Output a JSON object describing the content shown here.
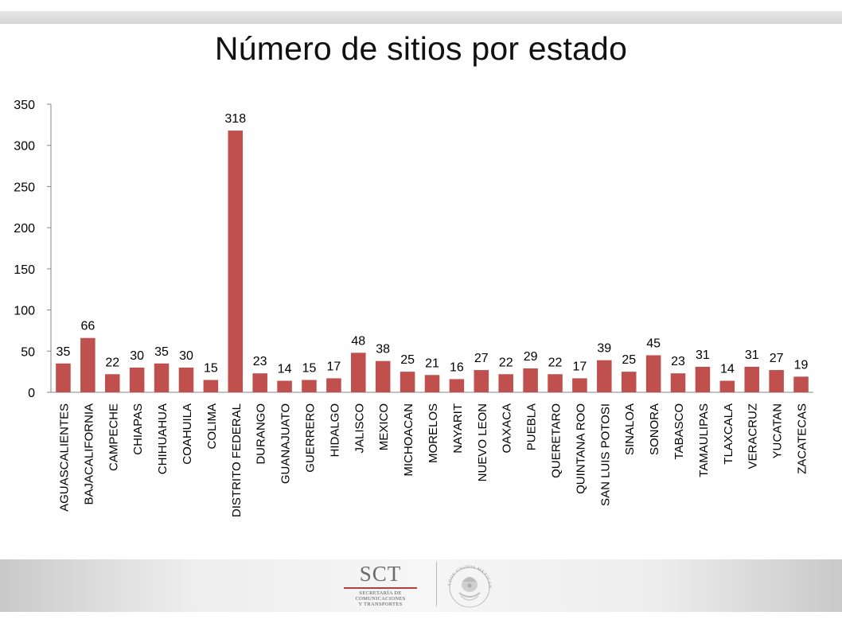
{
  "slide": {
    "title": "Número de sitios por estado"
  },
  "logo": {
    "name": "SCT",
    "subtitle_lines": [
      "SECRETARÍA DE",
      "COMUNICACIONES",
      "Y TRANSPORTES"
    ]
  },
  "seal": {
    "text": "ESTADOS UNIDOS MEXICANOS"
  },
  "colors": {
    "bar": "#c0504d",
    "axis": "#868686",
    "text": "#000000"
  },
  "chart_data": {
    "type": "bar",
    "title": "",
    "xlabel": "",
    "ylabel": "",
    "ylim": [
      0,
      350
    ],
    "yticks": [
      0,
      50,
      100,
      150,
      200,
      250,
      300,
      350
    ],
    "grid": false,
    "data_labels": true,
    "categories": [
      "AGUASCALIENTES",
      "BAJACALIFORNIA",
      "CAMPECHE",
      "CHIAPAS",
      "CHIHUAHUA",
      "COAHUILA",
      "COLIMA",
      "DISTRITO FEDERAL",
      "DURANGO",
      "GUANAJUATO",
      "GUERRERO",
      "HIDALGO",
      "JALISCO",
      "MEXICO",
      "MICHOACAN",
      "MORELOS",
      "NAYARIT",
      "NUEVO LEON",
      "OAXACA",
      "PUEBLA",
      "QUERETARO",
      "QUINTANA ROO",
      "SAN LUIS POTOSI",
      "SINALOA",
      "SONORA",
      "TABASCO",
      "TAMAULIPAS",
      "TLAXCALA",
      "VERACRUZ",
      "YUCATAN",
      "ZACATECAS"
    ],
    "values": [
      35,
      66,
      22,
      30,
      35,
      30,
      15,
      318,
      23,
      14,
      15,
      17,
      48,
      38,
      25,
      21,
      16,
      27,
      22,
      29,
      22,
      17,
      39,
      25,
      45,
      23,
      31,
      14,
      31,
      27,
      19
    ]
  }
}
